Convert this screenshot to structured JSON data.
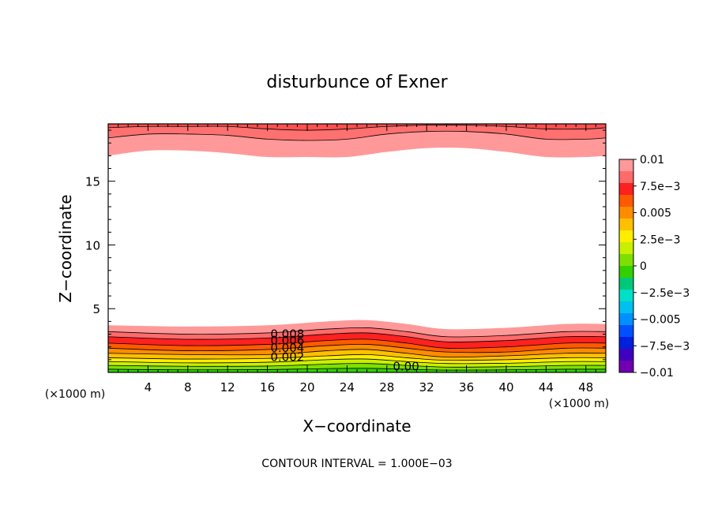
{
  "chart_data": {
    "type": "contour",
    "title": "disturbunce of Exner",
    "xlabel": "X−coordinate",
    "ylabel": "Z−coordinate",
    "x_unit_left": "(×1000 m)",
    "x_unit_right": "(×1000 m)",
    "footer": "CONTOUR INTERVAL = 1.000E−03",
    "xlim": [
      0,
      50
    ],
    "ylim": [
      0,
      19.5
    ],
    "x_ticks": [
      {
        "value": 4,
        "label": "4"
      },
      {
        "value": 8,
        "label": "8"
      },
      {
        "value": 12,
        "label": "12"
      },
      {
        "value": 16,
        "label": "16"
      },
      {
        "value": 20,
        "label": "20"
      },
      {
        "value": 24,
        "label": "24"
      },
      {
        "value": 28,
        "label": "28"
      },
      {
        "value": 32,
        "label": "32"
      },
      {
        "value": 36,
        "label": "36"
      },
      {
        "value": 40,
        "label": "40"
      },
      {
        "value": 44,
        "label": "44"
      },
      {
        "value": 48,
        "label": "48"
      }
    ],
    "y_ticks": [
      {
        "value": 5,
        "label": "5"
      },
      {
        "value": 10,
        "label": "10"
      },
      {
        "value": 15,
        "label": "15"
      }
    ],
    "contour_interval": 0.001,
    "top_layer_boundaries": [
      [
        [
          0,
          17.0
        ],
        [
          4,
          17.4
        ],
        [
          8,
          17.4
        ],
        [
          12,
          17.2
        ],
        [
          16,
          16.9
        ],
        [
          20,
          16.9
        ],
        [
          24,
          16.9
        ],
        [
          28,
          17.3
        ],
        [
          32,
          17.6
        ],
        [
          36,
          17.6
        ],
        [
          40,
          17.3
        ],
        [
          44,
          16.9
        ],
        [
          48,
          16.9
        ],
        [
          50,
          17.0
        ]
      ],
      [
        [
          0,
          18.4
        ],
        [
          4,
          18.7
        ],
        [
          8,
          18.7
        ],
        [
          12,
          18.6
        ],
        [
          16,
          18.3
        ],
        [
          20,
          18.2
        ],
        [
          24,
          18.3
        ],
        [
          28,
          18.7
        ],
        [
          32,
          18.9
        ],
        [
          36,
          18.9
        ],
        [
          40,
          18.7
        ],
        [
          44,
          18.3
        ],
        [
          48,
          18.3
        ],
        [
          50,
          18.4
        ]
      ],
      [
        [
          0,
          19.2
        ],
        [
          4,
          19.3
        ],
        [
          8,
          19.3
        ],
        [
          12,
          19.3
        ],
        [
          16,
          19.1
        ],
        [
          20,
          19.0
        ],
        [
          24,
          19.1
        ],
        [
          28,
          19.3
        ],
        [
          32,
          19.4
        ],
        [
          36,
          19.4
        ],
        [
          40,
          19.3
        ],
        [
          44,
          19.1
        ],
        [
          48,
          19.1
        ],
        [
          50,
          19.2
        ]
      ]
    ],
    "bottom_layer_tops": [
      {
        "level": 0.01,
        "color": "#ff9999",
        "points": [
          [
            0,
            3.7
          ],
          [
            8,
            3.6
          ],
          [
            16,
            3.7
          ],
          [
            22,
            4.0
          ],
          [
            26,
            4.1
          ],
          [
            30,
            3.8
          ],
          [
            34,
            3.4
          ],
          [
            40,
            3.5
          ],
          [
            46,
            3.8
          ],
          [
            50,
            3.8
          ]
        ]
      },
      {
        "level": 0.009,
        "color": "#ff6b6b",
        "points": [
          [
            0,
            3.2
          ],
          [
            8,
            3.0
          ],
          [
            16,
            3.1
          ],
          [
            22,
            3.4
          ],
          [
            26,
            3.5
          ],
          [
            30,
            3.2
          ],
          [
            34,
            2.8
          ],
          [
            40,
            2.9
          ],
          [
            46,
            3.2
          ],
          [
            50,
            3.2
          ]
        ]
      },
      {
        "level": 0.008,
        "color": "#ff2020",
        "points": [
          [
            0,
            2.8
          ],
          [
            8,
            2.6
          ],
          [
            16,
            2.7
          ],
          [
            22,
            3.0
          ],
          [
            26,
            3.1
          ],
          [
            30,
            2.8
          ],
          [
            34,
            2.4
          ],
          [
            40,
            2.5
          ],
          [
            46,
            2.8
          ],
          [
            50,
            2.8
          ]
        ]
      },
      {
        "level": 0.007,
        "color": "#ff5a00",
        "points": [
          [
            0,
            2.3
          ],
          [
            8,
            2.1
          ],
          [
            16,
            2.2
          ],
          [
            22,
            2.5
          ],
          [
            26,
            2.6
          ],
          [
            30,
            2.3
          ],
          [
            34,
            1.9
          ],
          [
            40,
            2.0
          ],
          [
            46,
            2.3
          ],
          [
            50,
            2.3
          ]
        ]
      },
      {
        "level": 0.006,
        "color": "#ff8c00",
        "points": [
          [
            0,
            1.9
          ],
          [
            8,
            1.7
          ],
          [
            16,
            1.8
          ],
          [
            22,
            2.1
          ],
          [
            26,
            2.2
          ],
          [
            30,
            1.9
          ],
          [
            34,
            1.6
          ],
          [
            40,
            1.6
          ],
          [
            46,
            1.9
          ],
          [
            50,
            1.9
          ]
        ]
      },
      {
        "level": 0.005,
        "color": "#ffc000",
        "points": [
          [
            0,
            1.5
          ],
          [
            8,
            1.4
          ],
          [
            16,
            1.4
          ],
          [
            22,
            1.7
          ],
          [
            26,
            1.8
          ],
          [
            30,
            1.5
          ],
          [
            34,
            1.2
          ],
          [
            40,
            1.3
          ],
          [
            46,
            1.5
          ],
          [
            50,
            1.5
          ]
        ]
      },
      {
        "level": 0.004,
        "color": "#ffee00",
        "points": [
          [
            0,
            1.15
          ],
          [
            8,
            1.05
          ],
          [
            16,
            1.1
          ],
          [
            22,
            1.3
          ],
          [
            26,
            1.4
          ],
          [
            30,
            1.15
          ],
          [
            34,
            0.95
          ],
          [
            40,
            1.0
          ],
          [
            46,
            1.15
          ],
          [
            50,
            1.15
          ]
        ]
      },
      {
        "level": 0.003,
        "color": "#c8f000",
        "points": [
          [
            0,
            0.85
          ],
          [
            8,
            0.75
          ],
          [
            16,
            0.8
          ],
          [
            22,
            1.0
          ],
          [
            26,
            1.05
          ],
          [
            30,
            0.85
          ],
          [
            34,
            0.7
          ],
          [
            40,
            0.72
          ],
          [
            46,
            0.85
          ],
          [
            50,
            0.85
          ]
        ]
      },
      {
        "level": 0.002,
        "color": "#7de000",
        "points": [
          [
            0,
            0.55
          ],
          [
            8,
            0.48
          ],
          [
            16,
            0.5
          ],
          [
            22,
            0.65
          ],
          [
            26,
            0.7
          ],
          [
            30,
            0.55
          ],
          [
            34,
            0.42
          ],
          [
            40,
            0.45
          ],
          [
            46,
            0.55
          ],
          [
            50,
            0.55
          ]
        ]
      },
      {
        "level": 0.001,
        "color": "#32d000",
        "points": [
          [
            0,
            0.25
          ],
          [
            8,
            0.2
          ],
          [
            16,
            0.22
          ],
          [
            22,
            0.3
          ],
          [
            26,
            0.32
          ],
          [
            30,
            0.25
          ],
          [
            34,
            0.18
          ],
          [
            40,
            0.2
          ],
          [
            46,
            0.25
          ],
          [
            50,
            0.25
          ]
        ]
      }
    ],
    "contour_labels": [
      {
        "text": "0.008",
        "x": 16.3,
        "y": 2.7
      },
      {
        "text": "0.006",
        "x": 16.3,
        "y": 2.2
      },
      {
        "text": "0.004",
        "x": 16.3,
        "y": 1.6
      },
      {
        "text": "0.002",
        "x": 16.3,
        "y": 0.9
      },
      {
        "text": "0.00",
        "x": 28.6,
        "y": 0.15
      }
    ],
    "colorbar": {
      "labels": [
        "0.01",
        "7.5e−3",
        "0.005",
        "2.5e−3",
        "0",
        "−2.5e−3",
        "−0.005",
        "−7.5e−3",
        "−0.01"
      ],
      "colors_top_to_bottom": [
        "#ff9999",
        "#ff6b6b",
        "#ff2020",
        "#ff5a00",
        "#ff8c00",
        "#ffc000",
        "#ffee00",
        "#c8f000",
        "#7de000",
        "#32d000",
        "#00c87a",
        "#00e0c8",
        "#00c0f0",
        "#0090ff",
        "#0050ff",
        "#0020e0",
        "#4000c0",
        "#7000b0"
      ]
    }
  }
}
